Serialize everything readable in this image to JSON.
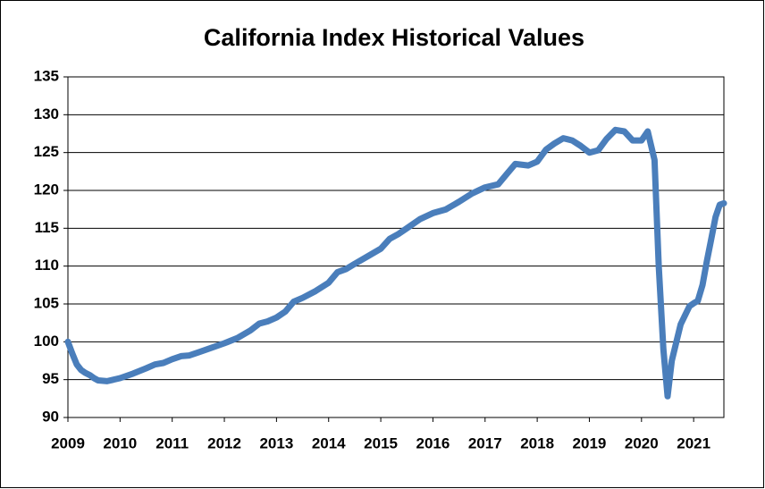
{
  "chart_data": {
    "type": "line",
    "title": "California Index Historical Values",
    "x": [
      2009.0,
      2009.08,
      2009.17,
      2009.25,
      2009.33,
      2009.42,
      2009.5,
      2009.58,
      2009.75,
      2010.0,
      2010.25,
      2010.5,
      2010.67,
      2010.83,
      2011.0,
      2011.17,
      2011.33,
      2011.5,
      2011.75,
      2012.0,
      2012.25,
      2012.5,
      2012.67,
      2012.83,
      2013.0,
      2013.17,
      2013.33,
      2013.5,
      2013.75,
      2014.0,
      2014.17,
      2014.33,
      2014.5,
      2014.75,
      2015.0,
      2015.17,
      2015.33,
      2015.5,
      2015.75,
      2016.0,
      2016.25,
      2016.5,
      2016.75,
      2017.0,
      2017.25,
      2017.42,
      2017.58,
      2017.83,
      2018.0,
      2018.17,
      2018.33,
      2018.5,
      2018.67,
      2018.83,
      2019.0,
      2019.17,
      2019.33,
      2019.5,
      2019.67,
      2019.83,
      2020.0,
      2020.12,
      2020.25,
      2020.33,
      2020.42,
      2020.5,
      2020.58,
      2020.75,
      2020.92,
      2021.0,
      2021.08,
      2021.17,
      2021.25,
      2021.33,
      2021.42,
      2021.5,
      2021.58
    ],
    "values": [
      100,
      98.5,
      97,
      96.3,
      95.9,
      95.6,
      95.2,
      94.9,
      94.8,
      95.2,
      95.8,
      96.5,
      97.0,
      97.2,
      97.7,
      98.1,
      98.2,
      98.6,
      99.2,
      99.8,
      100.5,
      101.5,
      102.4,
      102.7,
      103.2,
      104.0,
      105.3,
      105.8,
      106.7,
      107.8,
      109.2,
      109.6,
      110.3,
      111.3,
      112.3,
      113.6,
      114.2,
      115.0,
      116.2,
      117.0,
      117.5,
      118.5,
      119.6,
      120.4,
      120.8,
      122.2,
      123.5,
      123.3,
      123.8,
      125.4,
      126.2,
      126.9,
      126.6,
      125.9,
      125.0,
      125.3,
      126.8,
      128.0,
      127.8,
      126.6,
      126.6,
      127.8,
      124.0,
      110,
      99,
      92.8,
      97.5,
      102.3,
      104.7,
      105.1,
      105.4,
      107.5,
      110.5,
      113.3,
      116.5,
      118.1,
      118.3
    ],
    "color": "#4a7ebb",
    "xlim": [
      2009,
      2021.58
    ],
    "xticks": [
      2009,
      2010,
      2011,
      2012,
      2013,
      2014,
      2015,
      2016,
      2017,
      2018,
      2019,
      2020,
      2021
    ],
    "ylim": [
      90,
      135
    ],
    "yticks": [
      90,
      95,
      100,
      105,
      110,
      115,
      120,
      125,
      130,
      135
    ],
    "grid": true
  }
}
